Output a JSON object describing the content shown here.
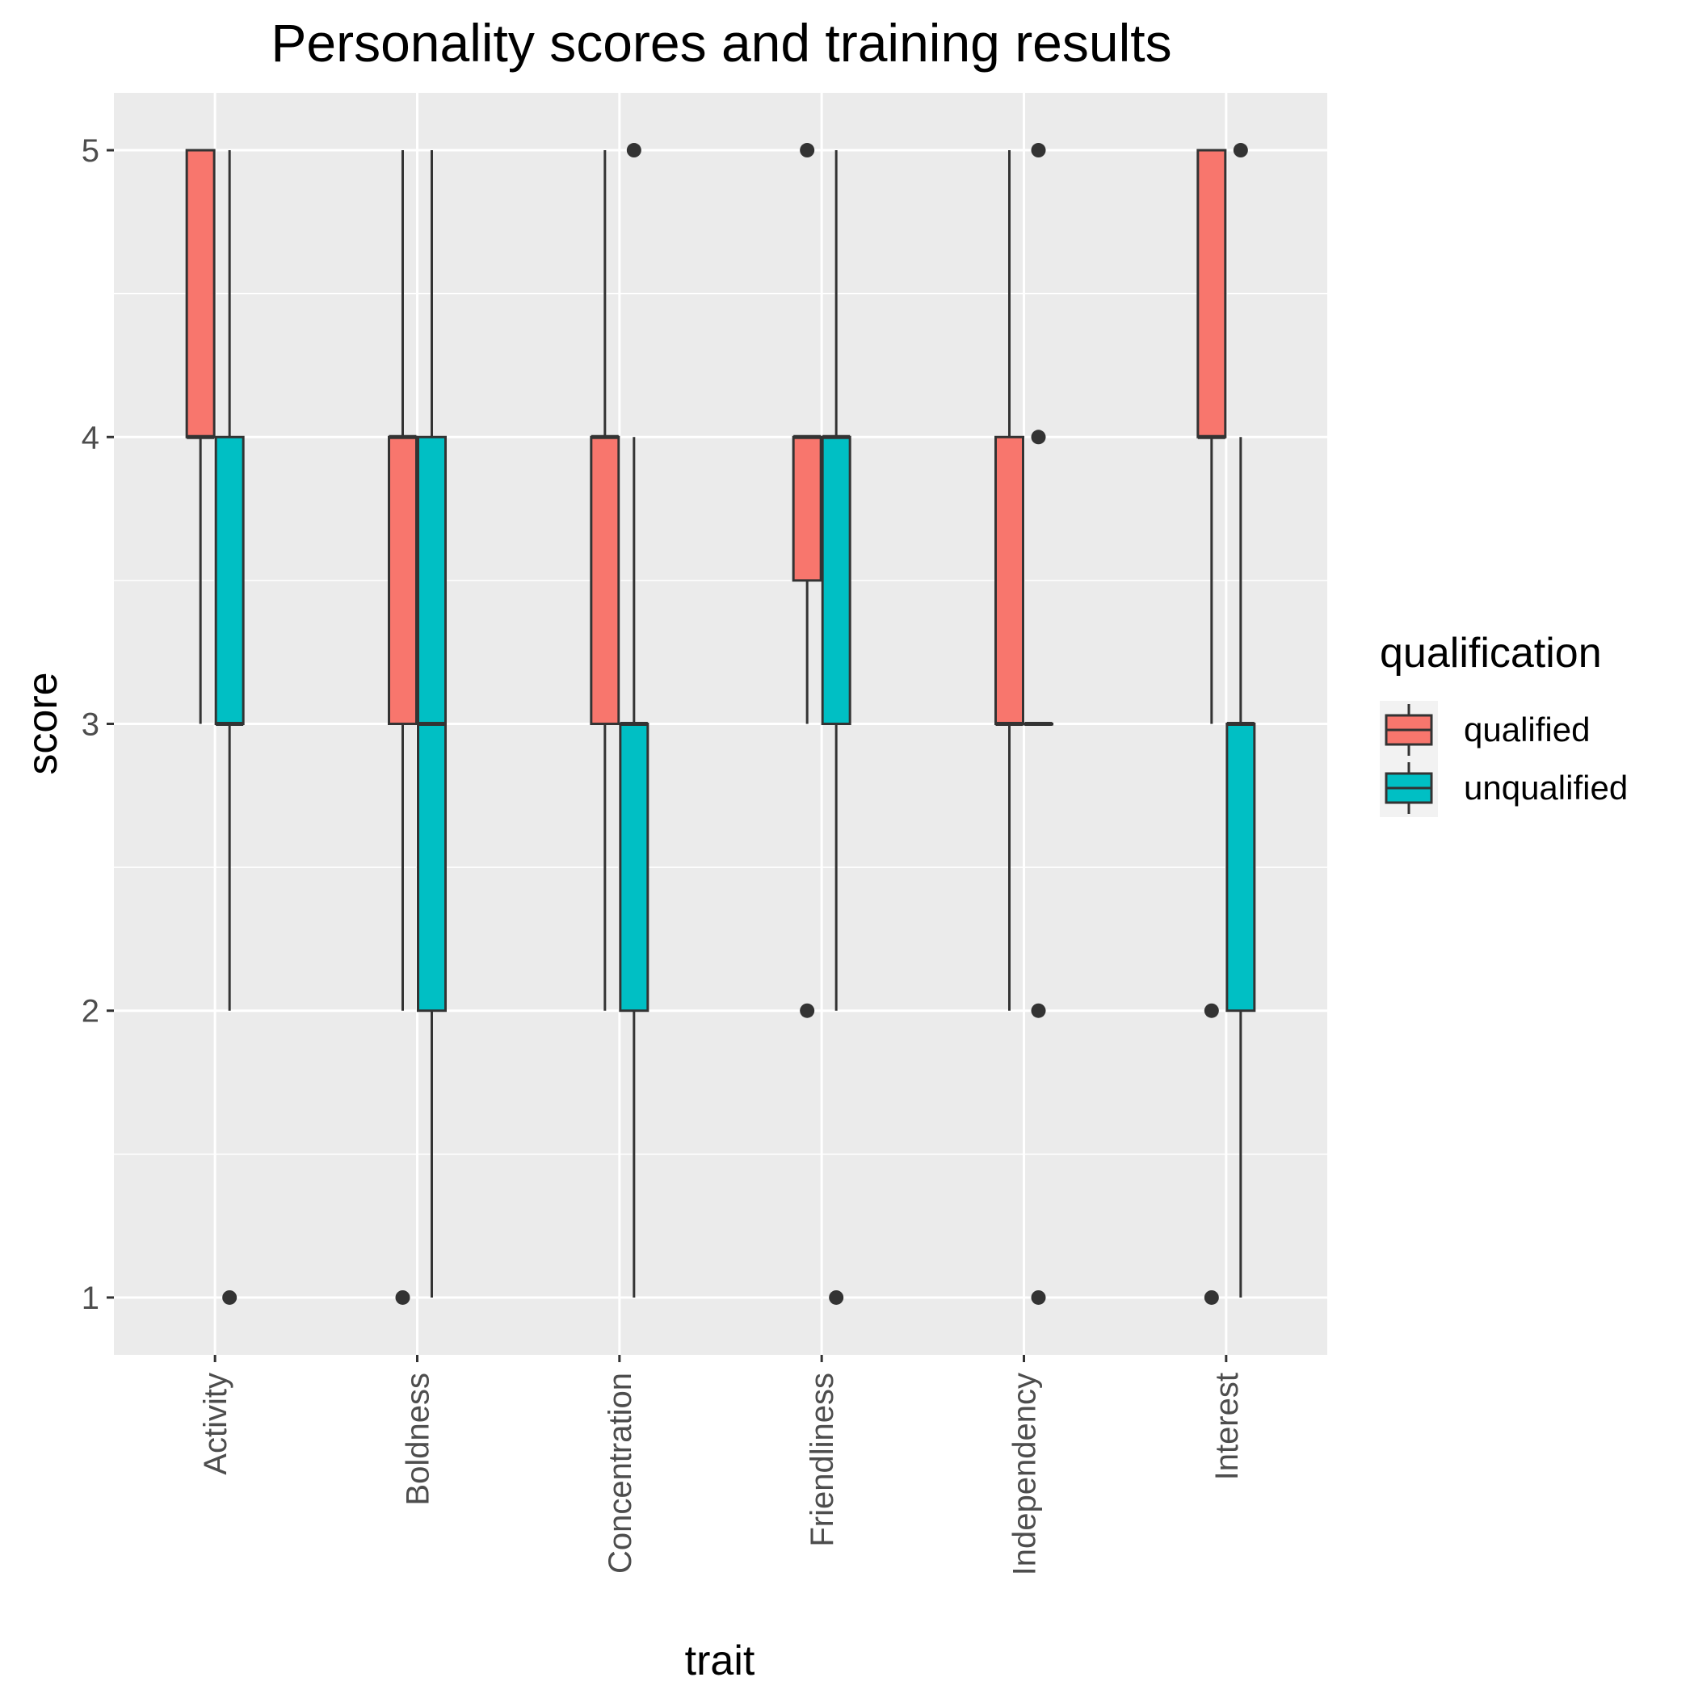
{
  "chart_data": {
    "type": "boxplot",
    "title": "Personality scores and training results",
    "xlabel": "trait",
    "ylabel": "score",
    "ylim": [
      0.8,
      5.2
    ],
    "yticks": [
      1,
      2,
      3,
      4,
      5
    ],
    "categories": [
      "Activity",
      "Boldness",
      "Concentration",
      "Friendliness",
      "Independency",
      "Interest"
    ],
    "legend": {
      "title": "qualification",
      "position": "right"
    },
    "grid": true,
    "series": [
      {
        "name": "qualified",
        "color": "#F8766D",
        "boxes": [
          {
            "lower": 3,
            "q1": 4,
            "median": 4,
            "q3": 5,
            "upper": 5,
            "outliers": []
          },
          {
            "lower": 2,
            "q1": 3,
            "median": 4,
            "q3": 4,
            "upper": 5,
            "outliers": [
              1
            ]
          },
          {
            "lower": 2,
            "q1": 3,
            "median": 4,
            "q3": 4,
            "upper": 5,
            "outliers": []
          },
          {
            "lower": 3,
            "q1": 3.5,
            "median": 4,
            "q3": 4,
            "upper": 4,
            "outliers": [
              2,
              5
            ]
          },
          {
            "lower": 2,
            "q1": 3,
            "median": 3,
            "q3": 4,
            "upper": 5,
            "outliers": []
          },
          {
            "lower": 3,
            "q1": 4,
            "median": 4,
            "q3": 5,
            "upper": 5,
            "outliers": [
              1,
              2
            ]
          }
        ]
      },
      {
        "name": "unqualified",
        "color": "#00BFC4",
        "boxes": [
          {
            "lower": 2,
            "q1": 3,
            "median": 3,
            "q3": 4,
            "upper": 5,
            "outliers": [
              1
            ]
          },
          {
            "lower": 1,
            "q1": 2,
            "median": 3,
            "q3": 4,
            "upper": 5,
            "outliers": []
          },
          {
            "lower": 1,
            "q1": 2,
            "median": 3,
            "q3": 3,
            "upper": 4,
            "outliers": [
              5
            ]
          },
          {
            "lower": 2,
            "q1": 3,
            "median": 4,
            "q3": 4,
            "upper": 5,
            "outliers": [
              1
            ]
          },
          {
            "lower": 3,
            "q1": 3,
            "median": 3,
            "q3": 3,
            "upper": 3,
            "outliers": [
              1,
              2,
              4,
              5
            ]
          },
          {
            "lower": 1,
            "q1": 2,
            "median": 3,
            "q3": 3,
            "upper": 4,
            "outliers": [
              5
            ]
          }
        ]
      }
    ]
  }
}
